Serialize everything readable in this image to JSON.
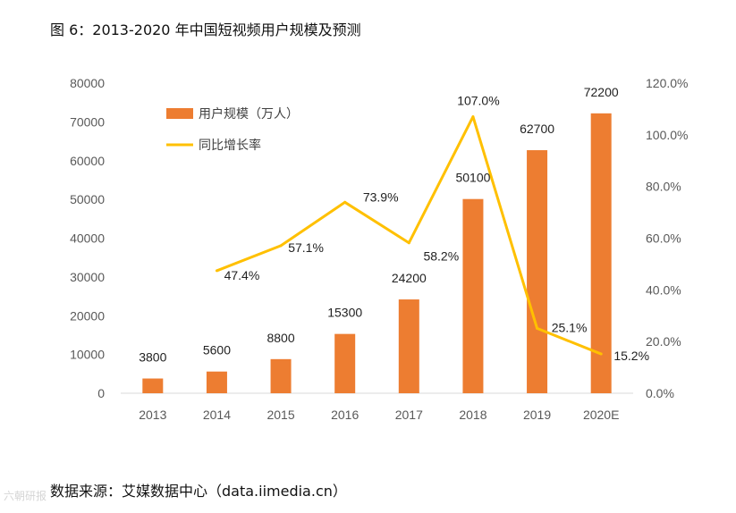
{
  "header": {
    "title": "图 6：2013-2020 年中国短视频用户规模及预测"
  },
  "footer": {
    "source": "数据来源：艾媒数据中心（data.iimedia.cn）"
  },
  "watermark": {
    "text": "六朝研报"
  },
  "colors": {
    "bar": "#ED7D31",
    "line": "#FFC000",
    "axis": "#D9D9D9"
  },
  "chart_data": {
    "type": "bar",
    "categories": [
      "2013",
      "2014",
      "2015",
      "2016",
      "2017",
      "2018",
      "2019",
      "2020E"
    ],
    "series": [
      {
        "name": "用户规模（万人）",
        "type": "bar",
        "axis": "left",
        "values": [
          3800,
          5600,
          8800,
          15300,
          24200,
          50100,
          62700,
          72200
        ],
        "labels": [
          "3800",
          "5600",
          "8800",
          "15300",
          "24200",
          "50100",
          "62700",
          "72200"
        ]
      },
      {
        "name": "同比增长率",
        "type": "line",
        "axis": "right",
        "values": [
          null,
          47.4,
          57.1,
          73.9,
          58.2,
          107.0,
          25.1,
          15.2
        ],
        "labels": [
          "",
          "47.4%",
          "57.1%",
          "73.9%",
          "58.2%",
          "107.0%",
          "25.1%",
          "15.2%"
        ]
      }
    ],
    "y_left": {
      "ylim": [
        0,
        80000
      ],
      "ticks": [
        "0",
        "10000",
        "20000",
        "30000",
        "40000",
        "50000",
        "60000",
        "70000",
        "80000"
      ]
    },
    "y_right": {
      "ylim": [
        0,
        120
      ],
      "ticks": [
        "0.0%",
        "20.0%",
        "40.0%",
        "60.0%",
        "80.0%",
        "100.0%",
        "120.0%"
      ]
    },
    "legend": "top-left",
    "grid": false
  }
}
